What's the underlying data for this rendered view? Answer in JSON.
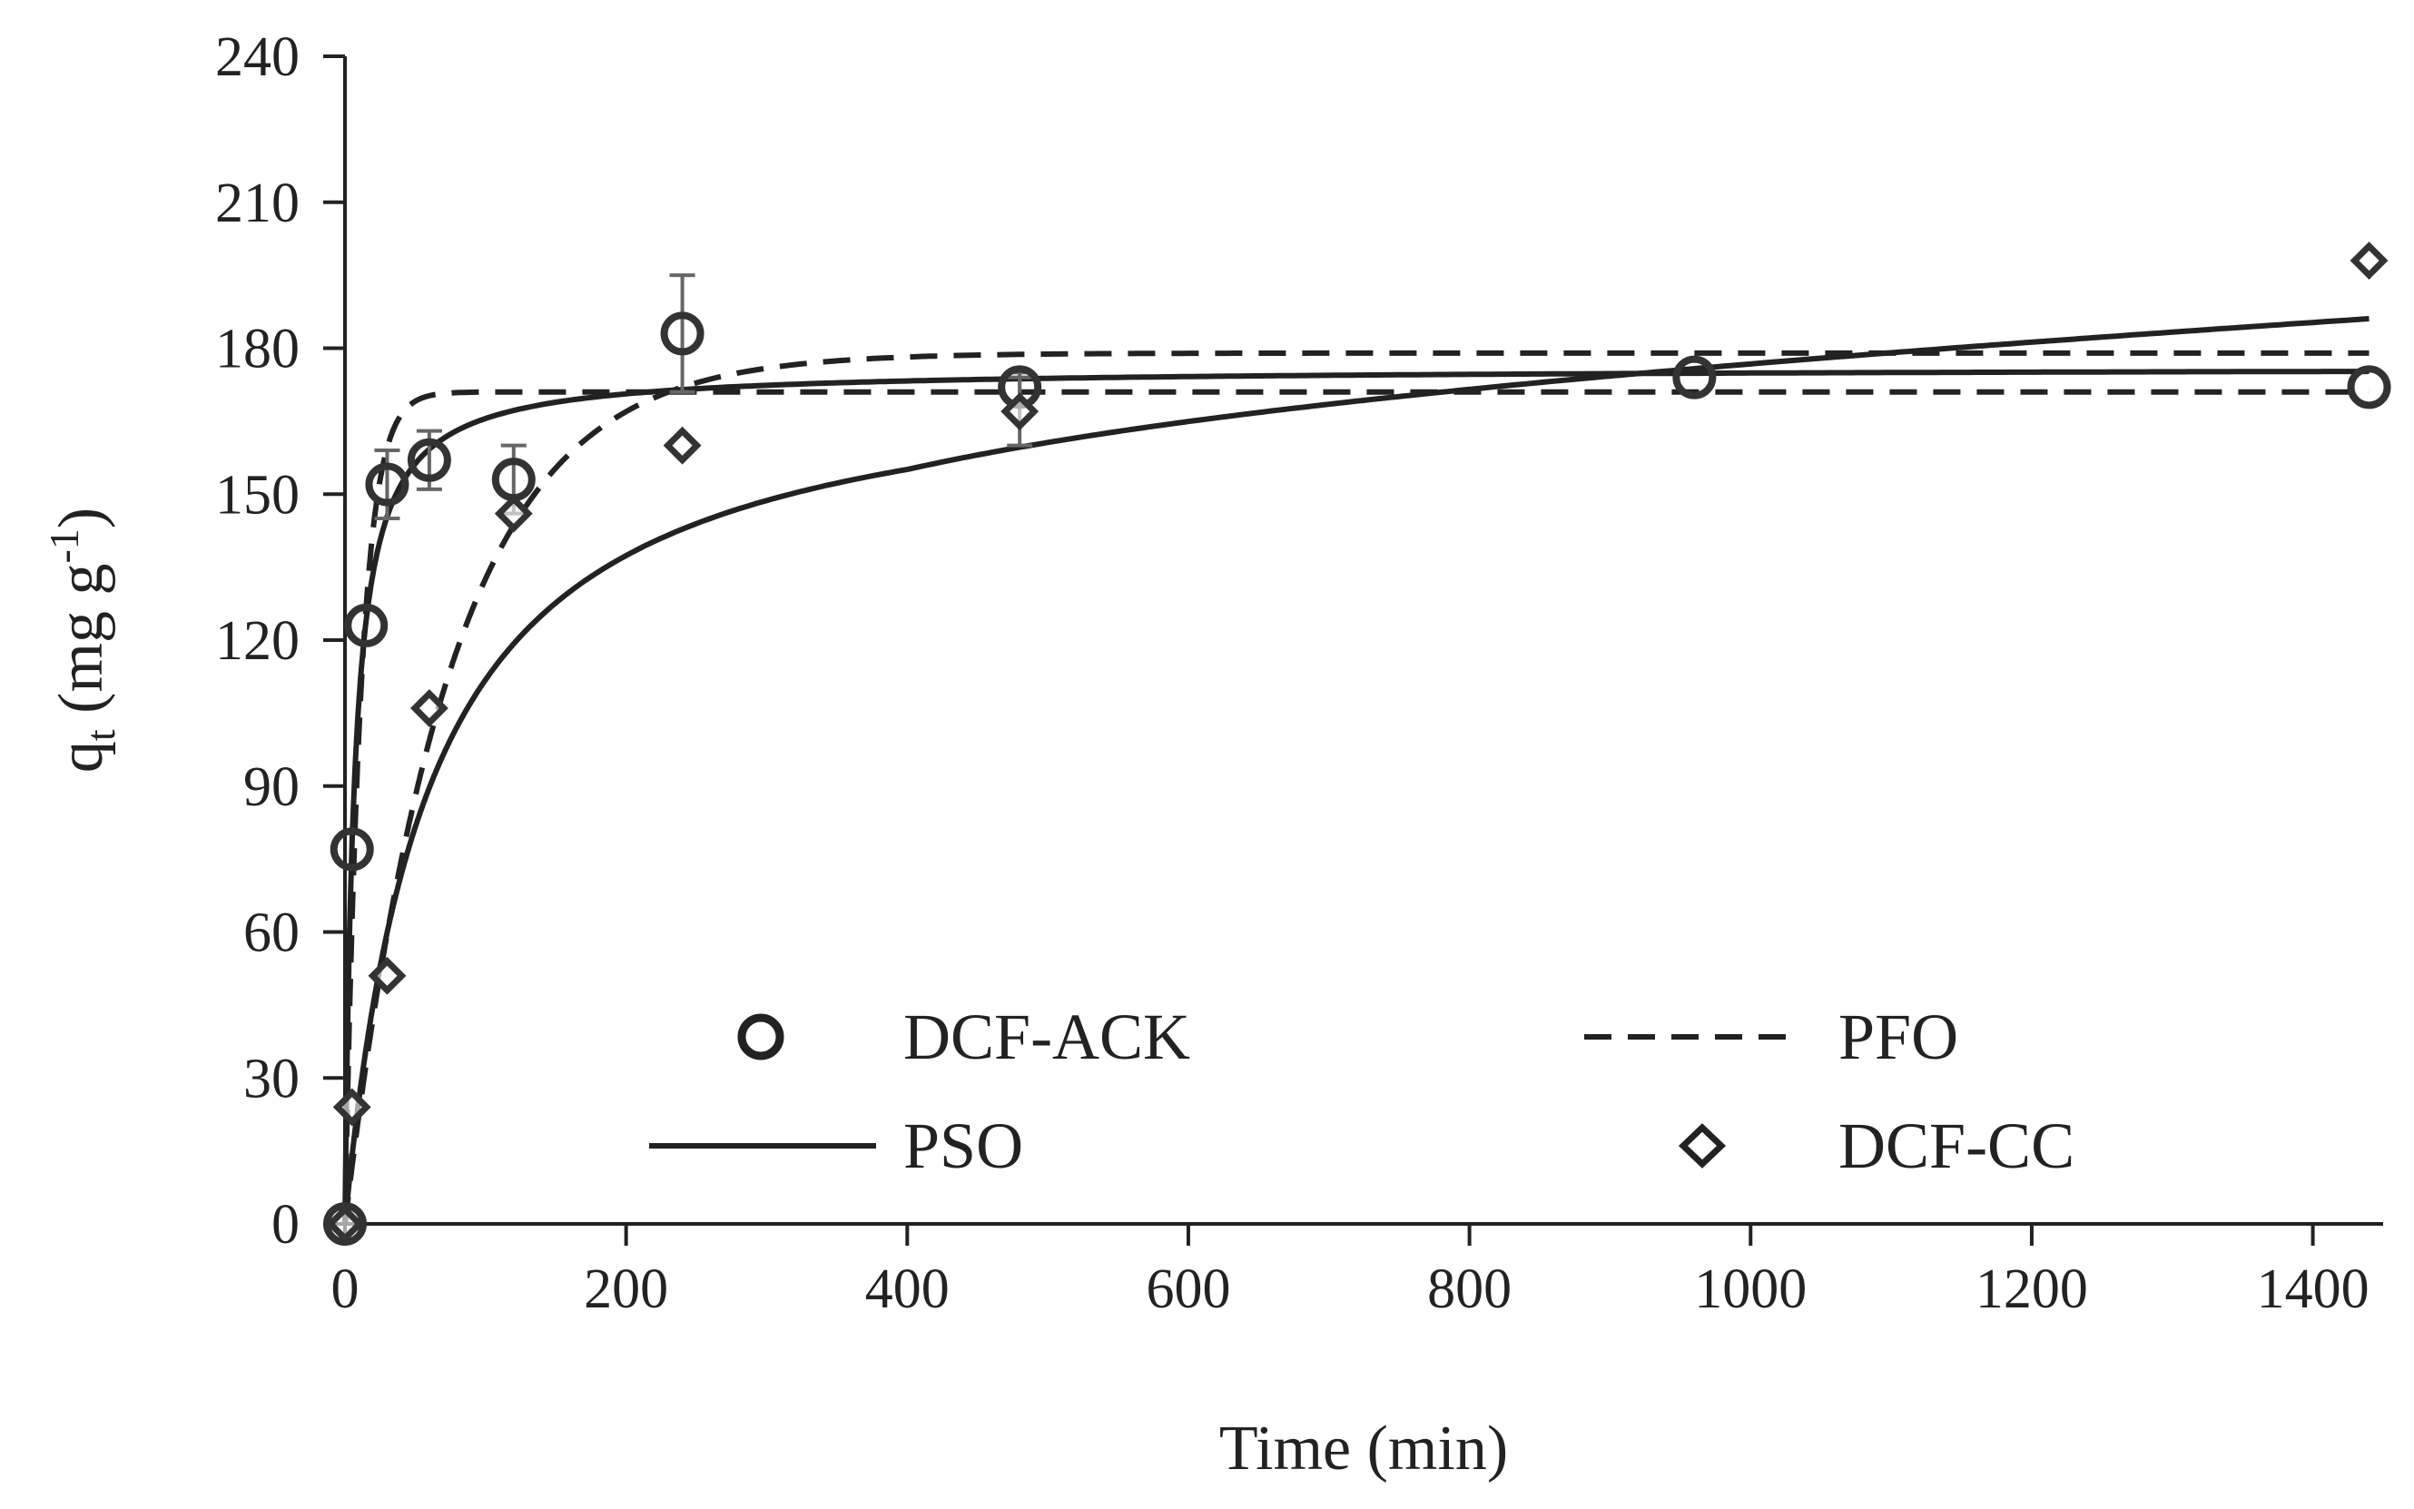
{
  "chart_data": {
    "type": "scatter",
    "title": "",
    "xlabel": "Time (min)",
    "ylabel": {
      "main": "q",
      "subscript": "t",
      "unit_prefix": " (mg g",
      "unit_superscript": "-1",
      "unit_suffix": ")"
    },
    "xlim": [
      0,
      1450
    ],
    "ylim": [
      0,
      240
    ],
    "x_ticks": [
      0,
      200,
      400,
      600,
      800,
      1000,
      1200,
      1400
    ],
    "y_ticks": [
      0,
      30,
      60,
      90,
      120,
      150,
      180,
      210,
      240
    ],
    "grid": false,
    "legend_position": "bottom-center",
    "series": [
      {
        "name": "DCF-ACK",
        "kind": "points",
        "marker": "circle",
        "x": [
          0,
          5,
          15,
          30,
          60,
          120,
          240,
          480,
          960,
          1440
        ],
        "y": [
          0,
          77,
          123,
          152,
          157,
          153,
          183,
          172,
          174,
          172
        ],
        "err": [
          0,
          0,
          0,
          7,
          6,
          7,
          12,
          3,
          0,
          0
        ]
      },
      {
        "name": "DCF-CC",
        "kind": "points",
        "marker": "diamond",
        "x": [
          0,
          5,
          30,
          60,
          120,
          240,
          480,
          1440
        ],
        "y": [
          0,
          24,
          51,
          106,
          146,
          160,
          167,
          198
        ],
        "err": [
          0,
          0,
          0,
          0,
          0,
          0,
          7,
          0
        ]
      },
      {
        "name": "PFO",
        "kind": "line",
        "style": "dashed",
        "curves": [
          {
            "fit_for": "DCF-ACK",
            "model": "pfo",
            "qe": 171,
            "k": 0.09
          },
          {
            "fit_for": "DCF-CC",
            "model": "pfo",
            "qe": 179,
            "k": 0.0135
          }
        ]
      },
      {
        "name": "PSO",
        "kind": "line",
        "style": "solid",
        "curves": [
          {
            "fit_for": "DCF-ACK",
            "model": "pso",
            "qe": 176,
            "k": 0.0009
          },
          {
            "fit_for": "DCF-CC",
            "model": "pso_drift",
            "qe": 178,
            "k": 9.5e-05,
            "drift_start": 400,
            "drift_slope": 0.0145
          }
        ]
      }
    ],
    "legend": [
      {
        "label": "DCF-ACK",
        "symbol": "circle"
      },
      {
        "label": "PFO",
        "symbol": "dashed-line"
      },
      {
        "label": "PSO",
        "symbol": "solid-line"
      },
      {
        "label": "DCF-CC",
        "symbol": "diamond"
      }
    ]
  }
}
